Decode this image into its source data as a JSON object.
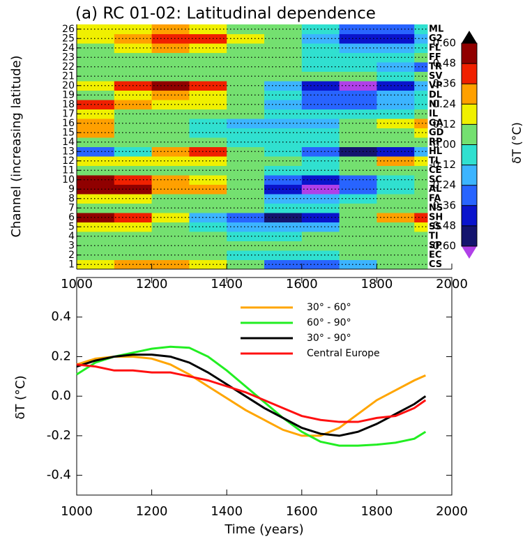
{
  "chart_data": [
    {
      "type": "heatmap",
      "title": "(a) RC 01-02: Latitudinal dependence",
      "ylabel": "Channel (increasing latitude)",
      "x_edges": [
        1000,
        1100,
        1200,
        1300,
        1400,
        1500,
        1600,
        1700,
        1800,
        1900,
        1935
      ],
      "values": [
        [
          0.15,
          0.35,
          0.3,
          0.15,
          0,
          -0.3,
          -0.35,
          -0.2,
          0,
          0.1
        ],
        [
          0.05,
          0.1,
          0.05,
          0,
          -0.05,
          -0.05,
          -0.05,
          0,
          0.05,
          0.05
        ],
        [
          0,
          0,
          0,
          0,
          0,
          0,
          0,
          0,
          0,
          0
        ],
        [
          0.05,
          0.05,
          0,
          0,
          -0.05,
          -0.05,
          0,
          0,
          0.05,
          0.05
        ],
        [
          0.15,
          0.15,
          0.05,
          -0.05,
          -0.15,
          -0.2,
          -0.15,
          0,
          0.1,
          0.15
        ],
        [
          0.5,
          0.45,
          0.15,
          -0.15,
          -0.35,
          -0.5,
          -0.4,
          0,
          0.3,
          0.4
        ],
        [
          0.1,
          0.05,
          0.1,
          0.05,
          0,
          -0.05,
          -0.05,
          0,
          0.1,
          0.1
        ],
        [
          0.2,
          0.15,
          0.1,
          0.1,
          0,
          -0.15,
          -0.2,
          -0.1,
          0,
          0
        ],
        [
          0.55,
          0.5,
          0.35,
          0.25,
          0,
          -0.4,
          -0.62,
          -0.3,
          -0.1,
          0
        ],
        [
          0.5,
          0.45,
          0.3,
          0.2,
          0,
          -0.35,
          -0.45,
          -0.25,
          -0.1,
          0
        ],
        [
          0.1,
          0.05,
          0.05,
          0.05,
          0,
          -0.1,
          -0.1,
          0,
          0.1,
          0.1
        ],
        [
          0.2,
          0.15,
          0.15,
          0.15,
          0.05,
          0,
          -0.05,
          0.1,
          0.25,
          0.2
        ],
        [
          -0.35,
          -0.1,
          0.3,
          0.4,
          0.1,
          -0.1,
          -0.3,
          -0.5,
          -0.4,
          -0.2
        ],
        [
          0.05,
          0.05,
          0,
          0,
          -0.05,
          -0.05,
          -0.05,
          0,
          0.05,
          0.05
        ],
        [
          0.3,
          0.1,
          0,
          -0.05,
          -0.1,
          -0.1,
          -0.1,
          0,
          0.1,
          0.15
        ],
        [
          0.25,
          0.05,
          0,
          -0.05,
          -0.15,
          -0.2,
          -0.15,
          0,
          0.15,
          0.25
        ],
        [
          0.15,
          0.1,
          0.05,
          0.05,
          0,
          -0.05,
          -0.1,
          -0.1,
          -0.05,
          0
        ],
        [
          0.45,
          0.3,
          0.2,
          0.2,
          0.05,
          -0.15,
          -0.35,
          -0.3,
          -0.2,
          -0.1
        ],
        [
          0.1,
          0.2,
          0.3,
          0.2,
          0,
          -0.1,
          -0.25,
          -0.3,
          -0.2,
          -0.1
        ],
        [
          0.2,
          0.4,
          0.55,
          0.45,
          0.1,
          -0.2,
          -0.45,
          -0.62,
          -0.4,
          -0.2
        ],
        [
          0.05,
          0.1,
          0.05,
          0,
          0,
          0,
          0,
          0,
          -0.05,
          0
        ],
        [
          0,
          0,
          0,
          0,
          0,
          0,
          -0.1,
          -0.1,
          -0.15,
          -0.25
        ],
        [
          0.05,
          0.05,
          0.1,
          0.05,
          0,
          0,
          -0.05,
          -0.05,
          -0.05,
          0
        ],
        [
          0.1,
          0.15,
          0.25,
          0.2,
          0.1,
          0,
          -0.1,
          -0.2,
          -0.2,
          -0.05
        ],
        [
          0.2,
          0.3,
          0.45,
          0.4,
          0.15,
          0,
          -0.2,
          -0.45,
          -0.4,
          -0.15
        ],
        [
          0.2,
          0.15,
          0.3,
          0.2,
          0.05,
          0,
          -0.1,
          -0.35,
          -0.3,
          -0.1
        ]
      ],
      "channel_labels": [
        "CS",
        "EC",
        "SP",
        "TI",
        "SS",
        "SH",
        "NS",
        "FA",
        "AL",
        "SC",
        "CE",
        "TL",
        "HL",
        "RP",
        "GD",
        "GA",
        "IL",
        "NI",
        "DL",
        "VP",
        "SV",
        "TR",
        "FF",
        "FL",
        "G2",
        "ML"
      ],
      "channel_label_colors": [
        "#f5a623",
        "#f5a623",
        "#f5a623",
        "#f5a623",
        "#f5a623",
        "#f5a623",
        "#f5a623",
        "#f5a623",
        "#f5a623",
        "#f5a623",
        "#f5a623",
        "#f5a623",
        "#f5a623",
        "#f5a623",
        "#f5a623",
        "#f5a623",
        "#22cc22",
        "#22cc22",
        "#22cc22",
        "#22cc22",
        "#22cc22",
        "#22cc22",
        "#22cc22",
        "#22cc22",
        "#22cc22",
        "#22cc22"
      ],
      "xlim": [
        1000,
        2000
      ],
      "ylim": [
        0.5,
        26.5
      ],
      "xticks": [
        1000,
        1200,
        1400,
        1600,
        1800,
        2000
      ],
      "yticks": [
        1,
        2,
        3,
        4,
        5,
        6,
        7,
        8,
        9,
        10,
        11,
        12,
        13,
        14,
        15,
        16,
        17,
        18,
        19,
        20,
        21,
        22,
        23,
        24,
        25,
        26
      ],
      "grid": true,
      "colorbar": {
        "label": "δT (°C)",
        "ticks": [
          {
            "value": -0.6,
            "label": "-0.60"
          },
          {
            "value": -0.48,
            "label": "-0.48"
          },
          {
            "value": -0.36,
            "label": "-0.36"
          },
          {
            "value": -0.24,
            "label": "-0.24"
          },
          {
            "value": -0.12,
            "label": "-0.12"
          },
          {
            "value": 0,
            "label": "-0.00"
          },
          {
            "value": 0.12,
            "label": "0.12"
          },
          {
            "value": 0.24,
            "label": "0.24"
          },
          {
            "value": 0.36,
            "label": "0.36"
          },
          {
            "value": 0.48,
            "label": "0.48"
          },
          {
            "value": 0.6,
            "label": "0.60"
          }
        ],
        "colors": [
          "#14146e",
          "#0a14cc",
          "#2864ff",
          "#3cb4ff",
          "#30e0d0",
          "#74e070",
          "#f0f000",
          "#ffa000",
          "#f02000",
          "#900000"
        ],
        "under_color": "#b040e8",
        "over_color": "#000000"
      }
    },
    {
      "type": "line",
      "xlabel": "Time (years)",
      "ylabel": "δT (°C)",
      "x": [
        1000,
        1050,
        1100,
        1150,
        1200,
        1250,
        1300,
        1350,
        1400,
        1450,
        1500,
        1550,
        1600,
        1650,
        1700,
        1750,
        1800,
        1850,
        1900,
        1930
      ],
      "series": [
        {
          "name": "30° - 60°",
          "color": "#ffa500",
          "values": [
            0.16,
            0.19,
            0.2,
            0.2,
            0.19,
            0.16,
            0.11,
            0.05,
            -0.01,
            -0.07,
            -0.12,
            -0.17,
            -0.2,
            -0.2,
            -0.16,
            -0.09,
            -0.02,
            0.03,
            0.08,
            0.105
          ]
        },
        {
          "name": "60° - 90°",
          "color": "#22ee22",
          "values": [
            0.11,
            0.17,
            0.2,
            0.22,
            0.24,
            0.25,
            0.245,
            0.2,
            0.13,
            0.05,
            -0.03,
            -0.11,
            -0.18,
            -0.23,
            -0.25,
            -0.25,
            -0.245,
            -0.235,
            -0.215,
            -0.18
          ]
        },
        {
          "name": "30° - 90°",
          "color": "#000000",
          "values": [
            0.15,
            0.18,
            0.2,
            0.21,
            0.21,
            0.2,
            0.17,
            0.12,
            0.06,
            0,
            -0.06,
            -0.11,
            -0.16,
            -0.19,
            -0.2,
            -0.18,
            -0.14,
            -0.09,
            -0.04,
            0
          ]
        },
        {
          "name": "Central Europe",
          "color": "#ff1010",
          "values": [
            0.16,
            0.15,
            0.13,
            0.13,
            0.12,
            0.12,
            0.1,
            0.08,
            0.05,
            0.02,
            -0.02,
            -0.06,
            -0.1,
            -0.12,
            -0.13,
            -0.13,
            -0.11,
            -0.1,
            -0.06,
            -0.02
          ]
        }
      ],
      "xlim": [
        1000,
        2000
      ],
      "ylim": [
        -0.5,
        0.6
      ],
      "xticks": [
        1000,
        1200,
        1400,
        1600,
        1800,
        2000
      ],
      "yticks": [
        -0.4,
        -0.2,
        {
          "value": 0,
          "label": "0.0"
        },
        0.2,
        0.4
      ],
      "legend": "top-right"
    }
  ]
}
